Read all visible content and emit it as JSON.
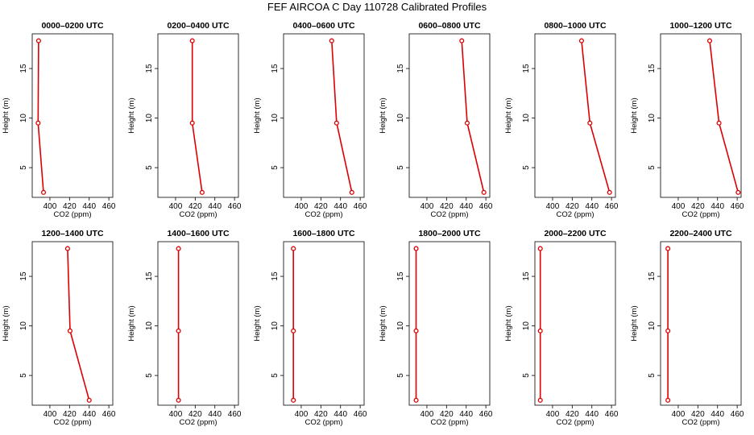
{
  "figure": {
    "title": "FEF AIRCOA C  Day 110728  Calibrated Profiles"
  },
  "colors": {
    "series": "#dd0000",
    "axis": "#000000"
  },
  "chart_data": [
    {
      "type": "line",
      "title": "0000–0200 UTC",
      "xlabel": "CO2 (ppm)",
      "ylabel": "Height (m)",
      "xlim": [
        382,
        464
      ],
      "ylim": [
        2.0,
        18.5
      ],
      "xticks": [
        400,
        420,
        440,
        460
      ],
      "yticks": [
        5,
        10,
        15
      ],
      "x": [
        388.5,
        388.0,
        393.5
      ],
      "y": [
        17.8,
        9.5,
        2.5
      ]
    },
    {
      "type": "line",
      "title": "0200–0400 UTC",
      "xlabel": "CO2 (ppm)",
      "ylabel": "Height (m)",
      "xlim": [
        382,
        464
      ],
      "ylim": [
        2.0,
        18.5
      ],
      "xticks": [
        400,
        420,
        440,
        460
      ],
      "yticks": [
        5,
        10,
        15
      ],
      "x": [
        417.0,
        417.0,
        427.0
      ],
      "y": [
        17.8,
        9.5,
        2.5
      ]
    },
    {
      "type": "line",
      "title": "0400–0600 UTC",
      "xlabel": "CO2 (ppm)",
      "ylabel": "Height (m)",
      "xlim": [
        382,
        464
      ],
      "ylim": [
        2.0,
        18.5
      ],
      "xticks": [
        400,
        420,
        440,
        460
      ],
      "yticks": [
        5,
        10,
        15
      ],
      "x": [
        431.0,
        436.0,
        451.5
      ],
      "y": [
        17.8,
        9.5,
        2.5
      ]
    },
    {
      "type": "line",
      "title": "0600–0800 UTC",
      "xlabel": "CO2 (ppm)",
      "ylabel": "Height (m)",
      "xlim": [
        382,
        464
      ],
      "ylim": [
        2.0,
        18.5
      ],
      "xticks": [
        400,
        420,
        440,
        460
      ],
      "yticks": [
        5,
        10,
        15
      ],
      "x": [
        435.5,
        441.0,
        458.0
      ],
      "y": [
        17.8,
        9.5,
        2.5
      ]
    },
    {
      "type": "line",
      "title": "0800–1000 UTC",
      "xlabel": "CO2 (ppm)",
      "ylabel": "Height (m)",
      "xlim": [
        382,
        464
      ],
      "ylim": [
        2.0,
        18.5
      ],
      "xticks": [
        400,
        420,
        440,
        460
      ],
      "yticks": [
        5,
        10,
        15
      ],
      "x": [
        429.5,
        438.0,
        458.0
      ],
      "y": [
        17.8,
        9.5,
        2.5
      ]
    },
    {
      "type": "line",
      "title": "1000–1200 UTC",
      "xlabel": "CO2 (ppm)",
      "ylabel": "Height (m)",
      "xlim": [
        382,
        464
      ],
      "ylim": [
        2.0,
        18.5
      ],
      "xticks": [
        400,
        420,
        440,
        460
      ],
      "yticks": [
        5,
        10,
        15
      ],
      "x": [
        432.0,
        441.5,
        461.0
      ],
      "y": [
        17.8,
        9.5,
        2.5
      ]
    },
    {
      "type": "line",
      "title": "1200–1400 UTC",
      "xlabel": "CO2 (ppm)",
      "ylabel": "Height (m)",
      "xlim": [
        382,
        464
      ],
      "ylim": [
        2.0,
        18.5
      ],
      "xticks": [
        400,
        420,
        440,
        460
      ],
      "yticks": [
        5,
        10,
        15
      ],
      "x": [
        418.0,
        420.5,
        440.0
      ],
      "y": [
        17.8,
        9.5,
        2.5
      ]
    },
    {
      "type": "line",
      "title": "1400–1600 UTC",
      "xlabel": "CO2 (ppm)",
      "ylabel": "Height (m)",
      "xlim": [
        382,
        464
      ],
      "ylim": [
        2.0,
        18.5
      ],
      "xticks": [
        400,
        420,
        440,
        460
      ],
      "yticks": [
        5,
        10,
        15
      ],
      "x": [
        403.0,
        403.0,
        403.0
      ],
      "y": [
        17.8,
        9.5,
        2.5
      ]
    },
    {
      "type": "line",
      "title": "1600–1800 UTC",
      "xlabel": "CO2 (ppm)",
      "ylabel": "Height (m)",
      "xlim": [
        382,
        464
      ],
      "ylim": [
        2.0,
        18.5
      ],
      "xticks": [
        400,
        420,
        440,
        460
      ],
      "yticks": [
        5,
        10,
        15
      ],
      "x": [
        392.0,
        392.0,
        392.0
      ],
      "y": [
        17.8,
        9.5,
        2.5
      ]
    },
    {
      "type": "line",
      "title": "1800–2000 UTC",
      "xlabel": "CO2 (ppm)",
      "ylabel": "Height (m)",
      "xlim": [
        382,
        464
      ],
      "ylim": [
        2.0,
        18.5
      ],
      "xticks": [
        400,
        420,
        440,
        460
      ],
      "yticks": [
        5,
        10,
        15
      ],
      "x": [
        389.0,
        389.0,
        389.0
      ],
      "y": [
        17.8,
        9.5,
        2.5
      ]
    },
    {
      "type": "line",
      "title": "2000–2200 UTC",
      "xlabel": "CO2 (ppm)",
      "ylabel": "Height (m)",
      "xlim": [
        382,
        464
      ],
      "ylim": [
        2.0,
        18.5
      ],
      "xticks": [
        400,
        420,
        440,
        460
      ],
      "yticks": [
        5,
        10,
        15
      ],
      "x": [
        387.5,
        387.5,
        387.5
      ],
      "y": [
        17.8,
        9.5,
        2.5
      ]
    },
    {
      "type": "line",
      "title": "2200–2400 UTC",
      "xlabel": "CO2 (ppm)",
      "ylabel": "Height (m)",
      "xlim": [
        382,
        464
      ],
      "ylim": [
        2.0,
        18.5
      ],
      "xticks": [
        400,
        420,
        440,
        460
      ],
      "yticks": [
        5,
        10,
        15
      ],
      "x": [
        389.5,
        389.5,
        389.5
      ],
      "y": [
        17.8,
        9.5,
        2.5
      ]
    }
  ]
}
